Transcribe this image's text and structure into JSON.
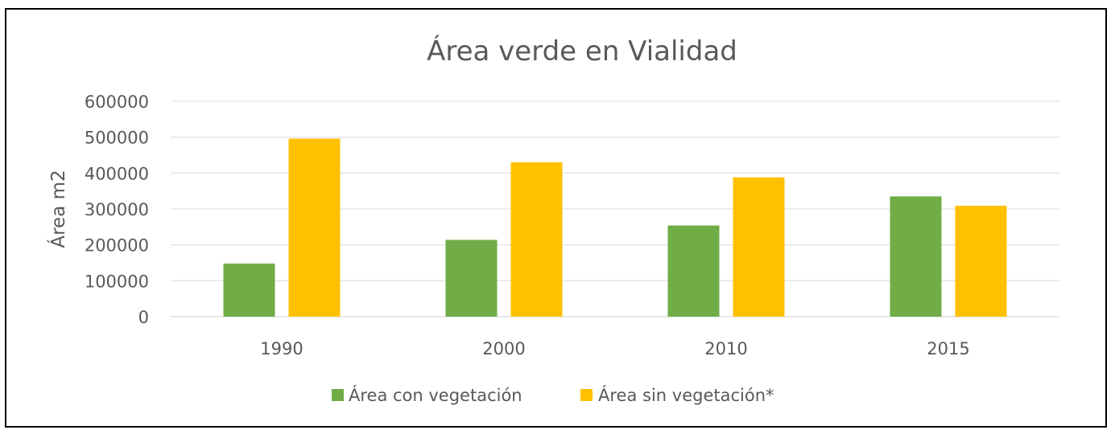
{
  "chart_data": {
    "type": "bar",
    "title": "Área verde en Vialidad",
    "xlabel": "",
    "ylabel": "Área m2",
    "categories": [
      "1990",
      "2000",
      "2010",
      "2015"
    ],
    "series": [
      {
        "name": "Área con vegetación",
        "color": "#70AD47",
        "values": [
          148000,
          214000,
          254000,
          335000
        ]
      },
      {
        "name": "Área sin vegetación*",
        "color": "#FFC000",
        "values": [
          496000,
          430000,
          388000,
          309000
        ]
      }
    ],
    "yticks": [
      "0",
      "100000",
      "200000",
      "300000",
      "400000",
      "500000",
      "600000"
    ],
    "ylim": [
      0,
      600000
    ],
    "grid": true,
    "legend": "bottom"
  }
}
